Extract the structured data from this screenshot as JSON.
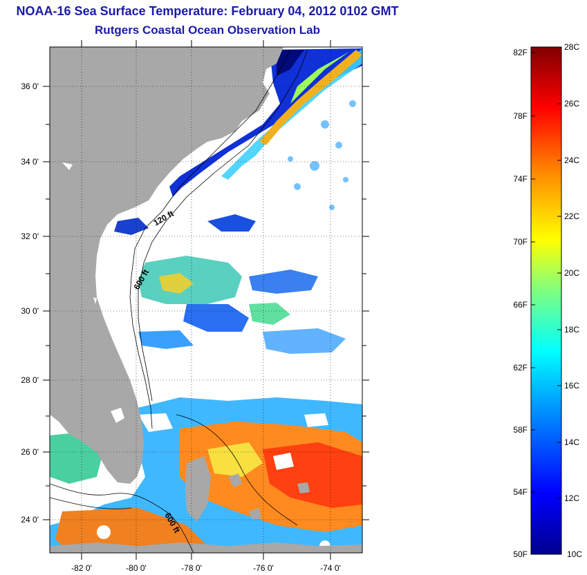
{
  "title": "NOAA-16 Sea Surface Temperature:  February 04, 2012 0102 GMT",
  "subtitle": "Rutgers Coastal Ocean Observation Lab",
  "lat_labels": [
    "36 0'",
    "34 0'",
    "32 0'",
    "30 0'",
    "28 0'",
    "26 0'",
    "24 0'"
  ],
  "lon_labels": [
    "-82 0'",
    "-80 0'",
    "-78 0'",
    "-76 0'",
    "-74 0'"
  ],
  "contour_labels": [
    "120 ft",
    "600 ft",
    "600 ft"
  ],
  "colorbar": {
    "fahrenheit_labels": [
      "82F",
      "78F",
      "74F",
      "70F",
      "66F",
      "62F",
      "58F",
      "54F",
      "50F"
    ],
    "celsius_labels": [
      "28C",
      "26C",
      "24C",
      "22C",
      "20C",
      "18C",
      "16C",
      "14C",
      "12C",
      "10C"
    ],
    "range_c": [
      10,
      28
    ],
    "colormap": [
      "#00008f",
      "#0000ff",
      "#00a0ff",
      "#00ffff",
      "#7fff7f",
      "#ffff00",
      "#ff8c00",
      "#ff0000",
      "#800000"
    ]
  },
  "colors": {
    "land": "#a8a8a8",
    "title": "#1a1aa8"
  }
}
